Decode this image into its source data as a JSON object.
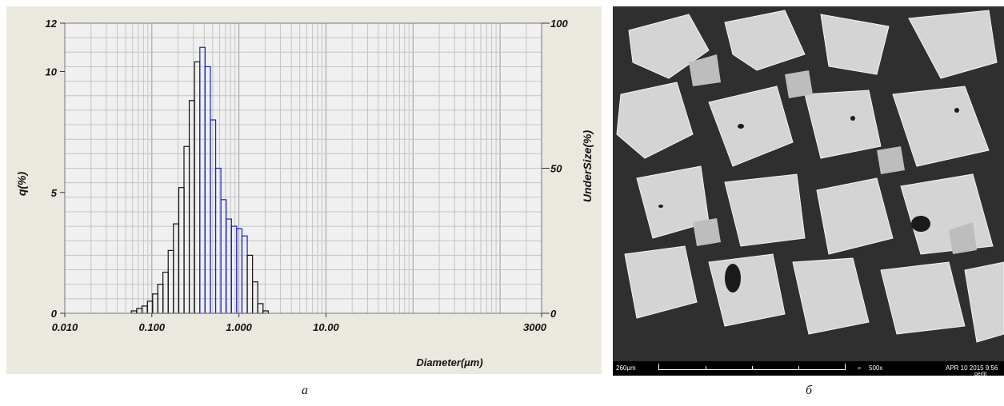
{
  "chart_data": {
    "type": "bar",
    "x_scale": "log",
    "xlim": [
      0.01,
      3000
    ],
    "x_ticks": [
      "0.010",
      "0.100",
      "1.000",
      "10.00",
      "3000"
    ],
    "xlabel": "Diameter(µm)",
    "ylabel_left": "q(%)",
    "ylim_left": [
      0,
      12
    ],
    "y_ticks_left": [
      "0",
      "5",
      "10",
      "12"
    ],
    "ylabel_right": "UnderSize(%)",
    "ylim_right": [
      0,
      100
    ],
    "y_ticks_right": [
      "0",
      "50",
      "100"
    ],
    "grid": true,
    "bins": [
      {
        "x": 0.058,
        "q": 0.1
      },
      {
        "x": 0.067,
        "q": 0.2
      },
      {
        "x": 0.077,
        "q": 0.3
      },
      {
        "x": 0.089,
        "q": 0.5
      },
      {
        "x": 0.102,
        "q": 0.8
      },
      {
        "x": 0.117,
        "q": 1.2
      },
      {
        "x": 0.134,
        "q": 1.7
      },
      {
        "x": 0.154,
        "q": 2.6
      },
      {
        "x": 0.177,
        "q": 3.7
      },
      {
        "x": 0.204,
        "q": 5.2
      },
      {
        "x": 0.234,
        "q": 6.9
      },
      {
        "x": 0.269,
        "q": 8.8
      },
      {
        "x": 0.309,
        "q": 10.4
      },
      {
        "x": 0.356,
        "q": 11.0
      },
      {
        "x": 0.409,
        "q": 10.2
      },
      {
        "x": 0.47,
        "q": 8.0
      },
      {
        "x": 0.54,
        "q": 6.0
      },
      {
        "x": 0.621,
        "q": 4.7
      },
      {
        "x": 0.714,
        "q": 3.9
      },
      {
        "x": 0.82,
        "q": 3.6
      },
      {
        "x": 0.943,
        "q": 3.5
      },
      {
        "x": 1.084,
        "q": 3.2
      },
      {
        "x": 1.246,
        "q": 2.4
      },
      {
        "x": 1.432,
        "q": 1.3
      },
      {
        "x": 1.646,
        "q": 0.4
      },
      {
        "x": 1.892,
        "q": 0.1
      }
    ],
    "colors": {
      "blue_bar": "#1a20c8",
      "black_bar": "#111111",
      "plot_bg": "#f0f0f0",
      "frame": "#ebe8e0"
    }
  },
  "sem_image": {
    "scale_label": "260µm",
    "magnification": "500x",
    "timestamp": "APR 10 2015 9:56",
    "sample_label": "perlit"
  },
  "captions": [
    "a",
    "б"
  ]
}
